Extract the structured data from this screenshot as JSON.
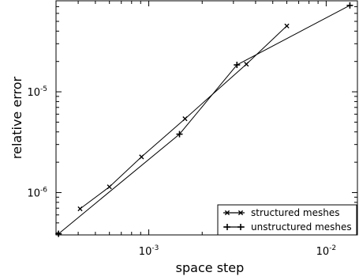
{
  "chart_data": {
    "type": "line",
    "xscale": "log",
    "yscale": "log",
    "xlabel": "space step",
    "ylabel": "relative error",
    "xlim": [
      0.0003,
      0.015
    ],
    "ylim": [
      3.8e-07,
      8e-05
    ],
    "grid": false,
    "legend_position": "bottom-right",
    "x_ticks": [
      {
        "value": 0.001,
        "base": "10",
        "exp": "-3"
      },
      {
        "value": 0.01,
        "base": "10",
        "exp": "-2"
      }
    ],
    "y_ticks": [
      {
        "value": 1e-06,
        "base": "10",
        "exp": "-6"
      },
      {
        "value": 1e-05,
        "base": "10",
        "exp": "-5"
      }
    ],
    "series": [
      {
        "name": "structured meshes",
        "marker": "x",
        "color": "#000000",
        "points": [
          [
            0.00041,
            6.9e-07
          ],
          [
            0.0006,
            1.14e-06
          ],
          [
            0.00091,
            2.26e-06
          ],
          [
            0.0016,
            5.4e-06
          ],
          [
            0.00355,
            1.88e-05
          ],
          [
            0.006,
            4.5e-05
          ]
        ]
      },
      {
        "name": "unstructured meshes",
        "marker": "+",
        "color": "#000000",
        "points": [
          [
            0.00031,
            3.9e-07
          ],
          [
            0.00149,
            3.8e-06
          ],
          [
            0.00314,
            1.85e-05
          ],
          [
            0.0136,
            7.2e-05
          ]
        ]
      }
    ]
  }
}
